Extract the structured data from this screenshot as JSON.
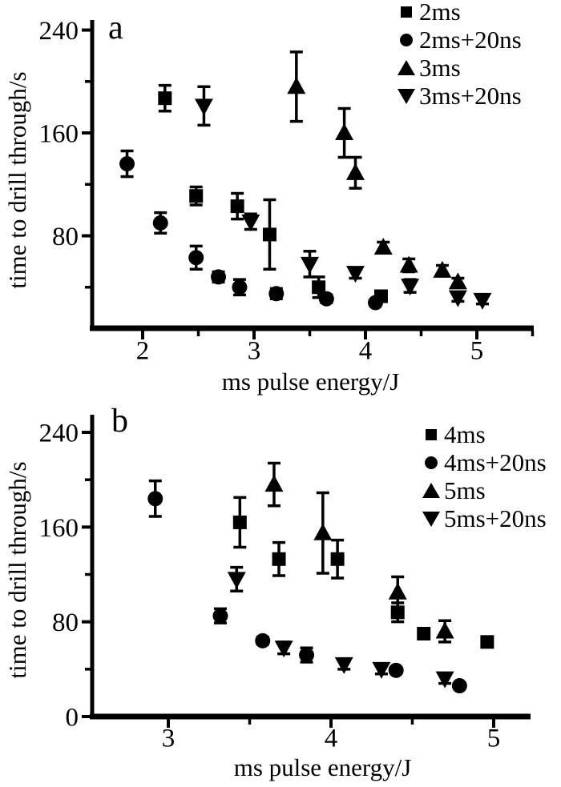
{
  "chart_data": [
    {
      "type": "scatter",
      "panel_label": "a",
      "title": "",
      "xlabel": "ms pulse energy/J",
      "ylabel": "time to drill through/s",
      "xlim": [
        1.55,
        5.45
      ],
      "ylim": [
        8,
        248
      ],
      "xticks": [
        2,
        3,
        4,
        5
      ],
      "xticks_minor": [
        2.5,
        3.5,
        4.5,
        5.5
      ],
      "yticks": [
        80,
        160,
        240
      ],
      "yticks_minor": [
        40,
        120,
        200
      ],
      "grid": false,
      "legend_position": "top-right",
      "error_bars": true,
      "series": [
        {
          "name": "2ms",
          "marker": "square",
          "points": [
            [
              2.2,
              187,
              10
            ],
            [
              2.48,
              111,
              7
            ],
            [
              2.85,
              103,
              10
            ],
            [
              3.14,
              81,
              27
            ],
            [
              3.58,
              40,
              8
            ],
            [
              4.14,
              33,
              4
            ]
          ]
        },
        {
          "name": "2ms+20ns",
          "marker": "circle",
          "points": [
            [
              1.86,
              136,
              10
            ],
            [
              2.16,
              90,
              8
            ],
            [
              2.48,
              63,
              9
            ],
            [
              2.68,
              48,
              4
            ],
            [
              2.87,
              40,
              6
            ],
            [
              3.2,
              35,
              4
            ],
            [
              3.65,
              31,
              3
            ],
            [
              4.09,
              28,
              0
            ]
          ]
        },
        {
          "name": "3ms",
          "marker": "triangle-up",
          "points": [
            [
              3.38,
              196,
              27
            ],
            [
              3.81,
              160,
              19
            ],
            [
              3.91,
              129,
              12
            ],
            [
              4.16,
              71,
              4
            ],
            [
              4.39,
              57,
              5
            ],
            [
              4.69,
              53,
              4
            ],
            [
              4.83,
              44,
              3
            ]
          ]
        },
        {
          "name": "3ms+20ns",
          "marker": "triangle-down",
          "points": [
            [
              2.55,
              181,
              15
            ],
            [
              2.97,
              91,
              6
            ],
            [
              3.5,
              58,
              10
            ],
            [
              3.91,
              51,
              4
            ],
            [
              4.4,
              41,
              5
            ],
            [
              4.83,
              32,
              3
            ],
            [
              5.05,
              30,
              3
            ]
          ]
        }
      ]
    },
    {
      "type": "scatter",
      "panel_label": "b",
      "title": "",
      "xlabel": "ms pulse energy/J",
      "ylabel": "time to drill through/s",
      "xlim": [
        2.53,
        5.22
      ],
      "ylim": [
        0,
        248
      ],
      "xticks": [
        3,
        4,
        5
      ],
      "xticks_minor": [
        3.5,
        4.5
      ],
      "yticks": [
        0,
        80,
        160,
        240
      ],
      "yticks_minor": [
        40,
        120,
        200
      ],
      "grid": false,
      "legend_position": "top-right",
      "error_bars": true,
      "series": [
        {
          "name": "4ms",
          "marker": "square",
          "points": [
            [
              3.44,
              164,
              21
            ],
            [
              3.68,
              133,
              14
            ],
            [
              4.04,
              133,
              16
            ],
            [
              4.41,
              88,
              8
            ],
            [
              4.57,
              70,
              0
            ],
            [
              4.96,
              63,
              3
            ]
          ]
        },
        {
          "name": "4ms+20ns",
          "marker": "circle",
          "points": [
            [
              2.92,
              184,
              15
            ],
            [
              3.32,
              85,
              6
            ],
            [
              3.58,
              64,
              3
            ],
            [
              3.85,
              52,
              6
            ],
            [
              4.4,
              39,
              0
            ],
            [
              4.79,
              26,
              0
            ]
          ]
        },
        {
          "name": "5ms",
          "marker": "triangle-up",
          "points": [
            [
              3.65,
              196,
              18
            ],
            [
              3.95,
              155,
              34
            ],
            [
              4.41,
              105,
              13
            ],
            [
              4.7,
              72,
              9
            ]
          ]
        },
        {
          "name": "5ms+20ns",
          "marker": "triangle-down",
          "points": [
            [
              3.42,
              116,
              10
            ],
            [
              3.71,
              58,
              5
            ],
            [
              4.08,
              44,
              4
            ],
            [
              4.31,
              40,
              4
            ],
            [
              4.7,
              32,
              4
            ]
          ]
        }
      ]
    }
  ]
}
